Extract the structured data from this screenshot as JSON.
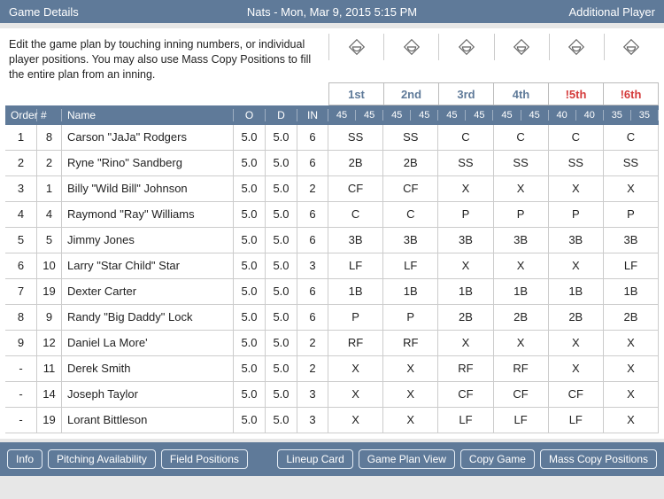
{
  "colors": {
    "brand": "#5f7a99",
    "alert": "#d43b3b",
    "border": "#cccccc",
    "text": "#222222",
    "bg": "#ffffff",
    "page_bg": "#e7e7e7"
  },
  "topbar": {
    "left": "Game Details",
    "title": "Nats - Mon, Mar 9, 2015 5:15 PM",
    "right": "Additional Player"
  },
  "instructions": "Edit the game plan by touching inning numbers, or individual player positions. You may also use Mass Copy Positions to fill the entire plan from an inning.",
  "innings": [
    {
      "label": "1st",
      "alert": false,
      "sub": [
        "45",
        "45"
      ]
    },
    {
      "label": "2nd",
      "alert": false,
      "sub": [
        "45",
        "45"
      ]
    },
    {
      "label": "3rd",
      "alert": false,
      "sub": [
        "45",
        "45"
      ]
    },
    {
      "label": "4th",
      "alert": false,
      "sub": [
        "45",
        "45"
      ]
    },
    {
      "label": "!5th",
      "alert": true,
      "sub": [
        "40",
        "40"
      ]
    },
    {
      "label": "!6th",
      "alert": true,
      "sub": [
        "35",
        "35"
      ]
    }
  ],
  "column_headers": {
    "order": "Order",
    "num": "#",
    "name": "Name",
    "o": "O",
    "d": "D",
    "in": "IN"
  },
  "players": [
    {
      "order": "1",
      "num": "8",
      "name": "Carson \"JaJa\" Rodgers",
      "o": "5.0",
      "d": "5.0",
      "in": "6",
      "pos": [
        "SS",
        "SS",
        "C",
        "C",
        "C",
        "C"
      ]
    },
    {
      "order": "2",
      "num": "2",
      "name": "Ryne \"Rino\" Sandberg",
      "o": "5.0",
      "d": "5.0",
      "in": "6",
      "pos": [
        "2B",
        "2B",
        "SS",
        "SS",
        "SS",
        "SS"
      ]
    },
    {
      "order": "3",
      "num": "1",
      "name": "Billy \"Wild Bill\" Johnson",
      "o": "5.0",
      "d": "5.0",
      "in": "2",
      "pos": [
        "CF",
        "CF",
        "X",
        "X",
        "X",
        "X"
      ]
    },
    {
      "order": "4",
      "num": "4",
      "name": "Raymond \"Ray\" Williams",
      "o": "5.0",
      "d": "5.0",
      "in": "6",
      "pos": [
        "C",
        "C",
        "P",
        "P",
        "P",
        "P"
      ]
    },
    {
      "order": "5",
      "num": "5",
      "name": "Jimmy Jones",
      "o": "5.0",
      "d": "5.0",
      "in": "6",
      "pos": [
        "3B",
        "3B",
        "3B",
        "3B",
        "3B",
        "3B"
      ]
    },
    {
      "order": "6",
      "num": "10",
      "name": "Larry \"Star Child\" Star",
      "o": "5.0",
      "d": "5.0",
      "in": "3",
      "pos": [
        "LF",
        "LF",
        "X",
        "X",
        "X",
        "LF"
      ]
    },
    {
      "order": "7",
      "num": "19",
      "name": "Dexter Carter",
      "o": "5.0",
      "d": "5.0",
      "in": "6",
      "pos": [
        "1B",
        "1B",
        "1B",
        "1B",
        "1B",
        "1B"
      ]
    },
    {
      "order": "8",
      "num": "9",
      "name": "Randy \"Big Daddy\" Lock",
      "o": "5.0",
      "d": "5.0",
      "in": "6",
      "pos": [
        "P",
        "P",
        "2B",
        "2B",
        "2B",
        "2B"
      ]
    },
    {
      "order": "9",
      "num": "12",
      "name": "Daniel La More'",
      "o": "5.0",
      "d": "5.0",
      "in": "2",
      "pos": [
        "RF",
        "RF",
        "X",
        "X",
        "X",
        "X"
      ]
    },
    {
      "order": "-",
      "num": "11",
      "name": "Derek Smith",
      "o": "5.0",
      "d": "5.0",
      "in": "2",
      "pos": [
        "X",
        "X",
        "RF",
        "RF",
        "X",
        "X"
      ]
    },
    {
      "order": "-",
      "num": "14",
      "name": "Joseph Taylor",
      "o": "5.0",
      "d": "5.0",
      "in": "3",
      "pos": [
        "X",
        "X",
        "CF",
        "CF",
        "CF",
        "X"
      ]
    },
    {
      "order": "-",
      "num": "19",
      "name": "Lorant Bittleson",
      "o": "5.0",
      "d": "5.0",
      "in": "3",
      "pos": [
        "X",
        "X",
        "LF",
        "LF",
        "LF",
        "X"
      ]
    }
  ],
  "bottom_buttons": {
    "left": [
      "Info",
      "Pitching Availability",
      "Field Positions"
    ],
    "right": [
      "Lineup Card",
      "Game Plan View",
      "Copy Game",
      "Mass Copy Positions"
    ]
  }
}
